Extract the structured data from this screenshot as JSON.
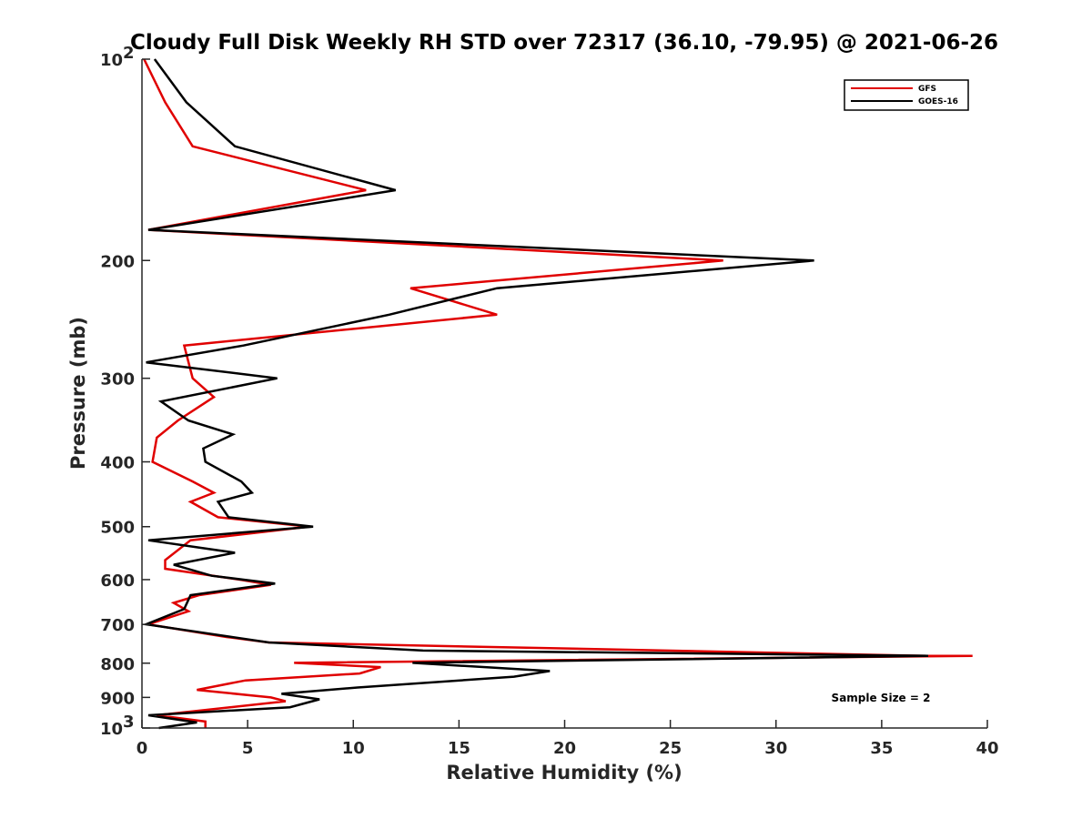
{
  "chart_data": {
    "type": "line",
    "title": "Cloudy Full Disk Weekly RH STD over 72317 (36.10, -79.95) @ 2021-06-26",
    "xlabel": "Relative Humidity (%)",
    "ylabel": "Pressure (mb)",
    "xlim": [
      0,
      40
    ],
    "ylim": [
      100,
      1000
    ],
    "y_scale": "log",
    "y_reversed": true,
    "grid": false,
    "legend_position": "top-right",
    "x_ticks": [
      "0",
      "5",
      "10",
      "15",
      "20",
      "25",
      "30",
      "35",
      "40"
    ],
    "y_ticks": [
      {
        "value": 100,
        "label": "10",
        "sup": "2"
      },
      {
        "value": 200,
        "label": "200"
      },
      {
        "value": 300,
        "label": "300"
      },
      {
        "value": 400,
        "label": "400"
      },
      {
        "value": 500,
        "label": "500"
      },
      {
        "value": 600,
        "label": "600"
      },
      {
        "value": 700,
        "label": "700"
      },
      {
        "value": 800,
        "label": "800"
      },
      {
        "value": 900,
        "label": "900"
      },
      {
        "value": 1000,
        "label": "10",
        "sup": "3"
      }
    ],
    "annotation": "Sample Size = 2",
    "series": [
      {
        "name": "GFS",
        "color": "#e00000",
        "points": [
          [
            0.1,
            100
          ],
          [
            1.1,
            116
          ],
          [
            2.4,
            135
          ],
          [
            10.6,
            157
          ],
          [
            0.3,
            180
          ],
          [
            27.5,
            200
          ],
          [
            12.7,
            220
          ],
          [
            16.8,
            241
          ],
          [
            2.0,
            268
          ],
          [
            2.4,
            300
          ],
          [
            3.4,
            320
          ],
          [
            1.7,
            347
          ],
          [
            0.7,
            368
          ],
          [
            0.5,
            400
          ],
          [
            2.4,
            428
          ],
          [
            3.4,
            445
          ],
          [
            2.3,
            459
          ],
          [
            3.6,
            484
          ],
          [
            7.9,
            500
          ],
          [
            2.3,
            524
          ],
          [
            1.1,
            561
          ],
          [
            1.1,
            578
          ],
          [
            4.6,
            600
          ],
          [
            6.1,
            611
          ],
          [
            2.7,
            633
          ],
          [
            1.5,
            650
          ],
          [
            2.2,
            669
          ],
          [
            0.3,
            700
          ],
          [
            4.0,
            731
          ],
          [
            6.0,
            745
          ],
          [
            37.1,
            780
          ],
          [
            39.3,
            780
          ],
          [
            7.2,
            799
          ],
          [
            11.3,
            811
          ],
          [
            10.3,
            829
          ],
          [
            4.9,
            849
          ],
          [
            2.6,
            877
          ],
          [
            6.1,
            900
          ],
          [
            6.8,
            912
          ],
          [
            0.7,
            957
          ],
          [
            3.0,
            978
          ],
          [
            3.0,
            1000
          ]
        ]
      },
      {
        "name": "GOES-16",
        "color": "#000000",
        "points": [
          [
            0.6,
            100
          ],
          [
            2.1,
            116
          ],
          [
            4.4,
            135
          ],
          [
            12.0,
            157
          ],
          [
            0.3,
            180
          ],
          [
            31.8,
            200
          ],
          [
            16.8,
            220
          ],
          [
            11.7,
            241
          ],
          [
            4.8,
            268
          ],
          [
            0.2,
            284
          ],
          [
            6.4,
            300
          ],
          [
            0.9,
            325
          ],
          [
            2.2,
            347
          ],
          [
            4.3,
            364
          ],
          [
            2.9,
            382
          ],
          [
            3.0,
            400
          ],
          [
            4.7,
            428
          ],
          [
            5.2,
            445
          ],
          [
            3.6,
            459
          ],
          [
            4.1,
            484
          ],
          [
            8.1,
            500
          ],
          [
            0.3,
            524
          ],
          [
            4.4,
            547
          ],
          [
            1.5,
            570
          ],
          [
            3.3,
            592
          ],
          [
            6.3,
            608
          ],
          [
            2.3,
            633
          ],
          [
            2.0,
            664
          ],
          [
            0.2,
            700
          ],
          [
            6.0,
            745
          ],
          [
            13.3,
            766
          ],
          [
            37.2,
            780
          ],
          [
            12.8,
            799
          ],
          [
            19.3,
            822
          ],
          [
            17.6,
            838
          ],
          [
            10.2,
            870
          ],
          [
            6.6,
            889
          ],
          [
            8.4,
            906
          ],
          [
            7.0,
            931
          ],
          [
            0.3,
            957
          ],
          [
            2.6,
            981
          ],
          [
            0.8,
            1000
          ]
        ]
      }
    ]
  }
}
